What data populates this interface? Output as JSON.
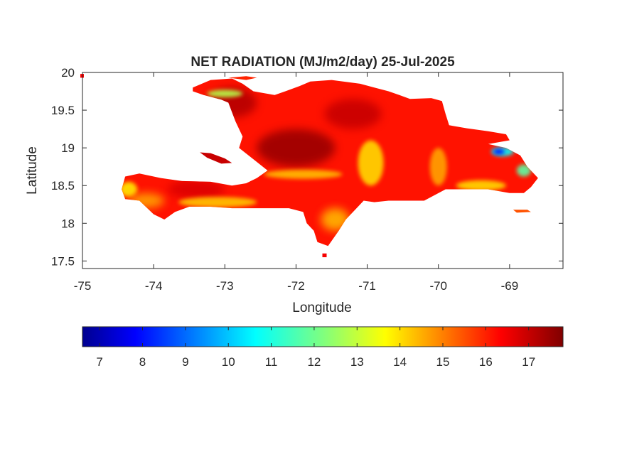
{
  "title": "NET RADIATION (MJ/m2/day) 25-Jul-2025",
  "xlabel": "Longitude",
  "ylabel": "Latitude",
  "chart_data": {
    "type": "heatmap",
    "title": "NET RADIATION (MJ/m2/day) 25-Jul-2025",
    "xlabel": "Longitude",
    "ylabel": "Latitude",
    "xlim": [
      -75,
      -68.25
    ],
    "ylim": [
      17.4,
      20
    ],
    "x_ticks": [
      -75,
      -74,
      -73,
      -72,
      -71,
      -70,
      -69
    ],
    "x_tick_labels": [
      "-75",
      "-74",
      "-73",
      "-72",
      "-71",
      "-70",
      "-69"
    ],
    "y_ticks": [
      17.5,
      18,
      18.5,
      19,
      19.5,
      20
    ],
    "y_tick_labels": [
      "17.5",
      "18",
      "18.5",
      "19",
      "19.5",
      "20"
    ],
    "colormap": "jet",
    "clim": [
      6.6,
      17.8
    ],
    "colorbar_ticks": [
      7,
      8,
      9,
      10,
      11,
      12,
      13,
      14,
      15,
      16,
      17
    ],
    "colorbar_tick_labels": [
      "7",
      "8",
      "9",
      "10",
      "11",
      "12",
      "13",
      "14",
      "15",
      "16",
      "17"
    ],
    "colorbar_location": "southoutside",
    "grid": false,
    "regions": [
      {
        "name": "hispaniola",
        "level": 16.2,
        "outline": [
          [
            -74.45,
            18.45
          ],
          [
            -74.4,
            18.62
          ],
          [
            -74.2,
            18.66
          ],
          [
            -73.9,
            18.6
          ],
          [
            -73.6,
            18.56
          ],
          [
            -73.2,
            18.55
          ],
          [
            -72.9,
            18.5
          ],
          [
            -72.7,
            18.53
          ],
          [
            -72.55,
            18.6
          ],
          [
            -72.4,
            18.7
          ],
          [
            -72.6,
            18.85
          ],
          [
            -72.8,
            19.0
          ],
          [
            -72.75,
            19.15
          ],
          [
            -72.85,
            19.35
          ],
          [
            -72.95,
            19.6
          ],
          [
            -73.05,
            19.64
          ],
          [
            -73.3,
            19.7
          ],
          [
            -73.45,
            19.75
          ],
          [
            -73.45,
            19.8
          ],
          [
            -73.2,
            19.9
          ],
          [
            -72.9,
            19.92
          ],
          [
            -72.75,
            19.85
          ],
          [
            -72.6,
            19.75
          ],
          [
            -72.3,
            19.7
          ],
          [
            -72.15,
            19.75
          ],
          [
            -71.95,
            19.82
          ],
          [
            -71.8,
            19.88
          ],
          [
            -71.5,
            19.9
          ],
          [
            -71.1,
            19.85
          ],
          [
            -70.9,
            19.8
          ],
          [
            -70.7,
            19.75
          ],
          [
            -70.55,
            19.7
          ],
          [
            -70.4,
            19.65
          ],
          [
            -70.1,
            19.66
          ],
          [
            -69.95,
            19.62
          ],
          [
            -69.9,
            19.45
          ],
          [
            -69.85,
            19.3
          ],
          [
            -69.6,
            19.26
          ],
          [
            -69.3,
            19.22
          ],
          [
            -69.05,
            19.18
          ],
          [
            -69.0,
            19.1
          ],
          [
            -69.3,
            19.05
          ],
          [
            -69.05,
            19.0
          ],
          [
            -68.85,
            18.9
          ],
          [
            -68.75,
            18.75
          ],
          [
            -68.6,
            18.6
          ],
          [
            -68.7,
            18.48
          ],
          [
            -68.8,
            18.4
          ],
          [
            -69.0,
            18.4
          ],
          [
            -69.3,
            18.45
          ],
          [
            -69.6,
            18.45
          ],
          [
            -69.9,
            18.45
          ],
          [
            -70.2,
            18.3
          ],
          [
            -70.5,
            18.3
          ],
          [
            -70.7,
            18.3
          ],
          [
            -70.9,
            18.28
          ],
          [
            -71.05,
            18.3
          ],
          [
            -71.15,
            18.2
          ],
          [
            -71.3,
            18.05
          ],
          [
            -71.4,
            17.9
          ],
          [
            -71.55,
            17.7
          ],
          [
            -71.7,
            17.75
          ],
          [
            -71.75,
            17.9
          ],
          [
            -71.85,
            18.0
          ],
          [
            -71.9,
            18.15
          ],
          [
            -72.1,
            18.2
          ],
          [
            -72.4,
            18.2
          ],
          [
            -72.7,
            18.2
          ],
          [
            -72.9,
            18.2
          ],
          [
            -73.2,
            18.22
          ],
          [
            -73.5,
            18.22
          ],
          [
            -73.7,
            18.15
          ],
          [
            -73.85,
            18.05
          ],
          [
            -74.0,
            18.12
          ],
          [
            -74.2,
            18.3
          ],
          [
            -74.4,
            18.32
          ]
        ]
      },
      {
        "name": "la-gonave",
        "level": 17.0,
        "outline": [
          [
            -73.35,
            18.94
          ],
          [
            -73.2,
            18.93
          ],
          [
            -73.0,
            18.86
          ],
          [
            -72.9,
            18.8
          ],
          [
            -73.05,
            18.79
          ],
          [
            -73.25,
            18.87
          ]
        ]
      },
      {
        "name": "tortuga",
        "level": 16.0,
        "outline": [
          [
            -72.95,
            19.93
          ],
          [
            -72.7,
            19.95
          ],
          [
            -72.55,
            19.93
          ],
          [
            -72.7,
            19.9
          ]
        ]
      },
      {
        "name": "saona",
        "level": 15.5,
        "outline": [
          [
            -68.95,
            18.18
          ],
          [
            -68.75,
            18.18
          ],
          [
            -68.7,
            18.15
          ],
          [
            -68.9,
            18.14
          ]
        ]
      },
      {
        "name": "beata",
        "level": 16.5,
        "outline": [
          [
            -71.63,
            17.6
          ],
          [
            -71.57,
            17.6
          ],
          [
            -71.57,
            17.55
          ],
          [
            -71.63,
            17.55
          ]
        ]
      },
      {
        "name": "navassa",
        "level": 16.5,
        "outline": [
          [
            -75.03,
            19.98
          ],
          [
            -74.98,
            19.98
          ],
          [
            -74.98,
            19.93
          ],
          [
            -75.03,
            19.93
          ]
        ]
      }
    ],
    "hotspots": [
      {
        "region": "north-coast",
        "lon": -72.0,
        "lat": 19.0,
        "level": 17.5,
        "rx": 0.55,
        "ry": 0.25
      },
      {
        "region": "northwest",
        "lon": -72.9,
        "lat": 19.6,
        "level": 17.2,
        "rx": 0.35,
        "ry": 0.2
      },
      {
        "region": "north",
        "lon": -71.2,
        "lat": 19.45,
        "level": 17.0,
        "rx": 0.4,
        "ry": 0.2
      },
      {
        "region": "southwest",
        "lon": -73.4,
        "lat": 18.45,
        "level": 16.8,
        "rx": 0.4,
        "ry": 0.12
      },
      {
        "region": "west-tip",
        "lon": -74.35,
        "lat": 18.45,
        "level": 13.8,
        "rx": 0.12,
        "ry": 0.1
      },
      {
        "region": "south-coast",
        "lon": -73.1,
        "lat": 18.28,
        "level": 14.2,
        "rx": 0.55,
        "ry": 0.07
      },
      {
        "region": "south-peninsula",
        "lon": -74.1,
        "lat": 18.3,
        "level": 14.6,
        "rx": 0.25,
        "ry": 0.1
      },
      {
        "region": "central-band",
        "lon": -71.9,
        "lat": 18.65,
        "level": 14.3,
        "rx": 0.55,
        "ry": 0.06
      },
      {
        "region": "barahona",
        "lon": -71.45,
        "lat": 18.05,
        "level": 14.4,
        "rx": 0.2,
        "ry": 0.15
      },
      {
        "region": "cordillera",
        "lon": -70.95,
        "lat": 18.8,
        "level": 14.0,
        "rx": 0.18,
        "ry": 0.3
      },
      {
        "region": "east-south",
        "lon": -69.4,
        "lat": 18.5,
        "level": 14.0,
        "rx": 0.35,
        "ry": 0.07
      },
      {
        "region": "east-ridge",
        "lon": -70.0,
        "lat": 18.75,
        "level": 14.6,
        "rx": 0.12,
        "ry": 0.25
      },
      {
        "region": "north-strip",
        "lon": -73.0,
        "lat": 19.72,
        "level": 12.8,
        "rx": 0.25,
        "ry": 0.05
      },
      {
        "region": "east-coast",
        "lon": -68.8,
        "lat": 18.7,
        "level": 11.8,
        "rx": 0.1,
        "ry": 0.08
      },
      {
        "region": "samana-low",
        "lon": -69.1,
        "lat": 18.95,
        "level": 10.8,
        "rx": 0.16,
        "ry": 0.06
      },
      {
        "region": "samana-core",
        "lon": -69.15,
        "lat": 18.95,
        "level": 8.0,
        "rx": 0.08,
        "ry": 0.035
      }
    ]
  }
}
